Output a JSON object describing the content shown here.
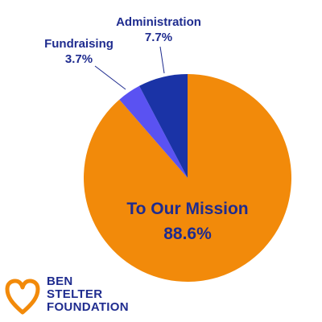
{
  "chart_data": {
    "type": "pie",
    "slices": [
      {
        "label": "To Our Mission",
        "value": 88.6,
        "display": "88.6%",
        "color": "#f28a0a"
      },
      {
        "label": "Fundraising",
        "value": 3.7,
        "display": "3.7%",
        "color": "#5a52f2"
      },
      {
        "label": "Administration",
        "value": 7.7,
        "display": "7.7%",
        "color": "#1a33a6"
      }
    ],
    "start_angle_deg": 0,
    "direction": "clockwise",
    "label_color": "#1f2c8f"
  },
  "logo": {
    "lines": [
      "BEN",
      "STELTER",
      "FOUNDATION"
    ],
    "heart_color": "#f28a0a",
    "text_color": "#1f2c8f"
  }
}
